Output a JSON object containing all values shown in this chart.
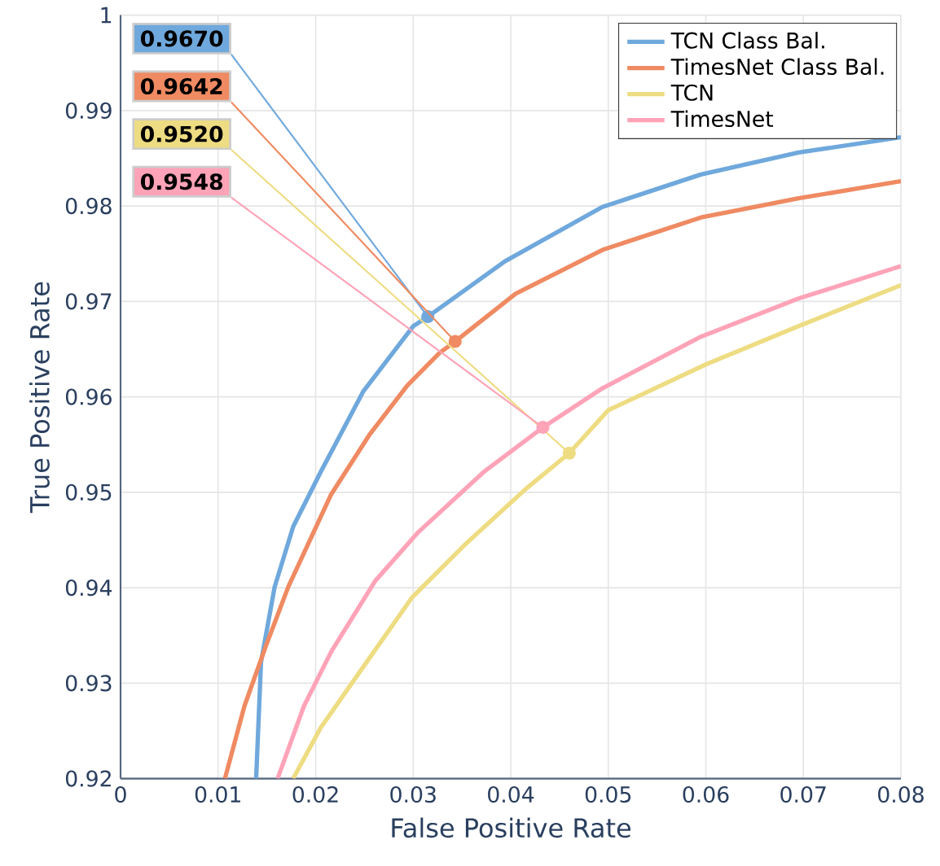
{
  "chart_data": {
    "type": "line",
    "xlabel": "False Positive Rate",
    "ylabel": "True Positive Rate",
    "xlim": [
      0,
      0.08
    ],
    "ylim": [
      0.92,
      1
    ],
    "xticks": [
      0,
      0.01,
      0.02,
      0.03,
      0.04,
      0.05,
      0.06,
      0.07,
      0.08
    ],
    "yticks": [
      0.92,
      0.93,
      0.94,
      0.95,
      0.96,
      0.97,
      0.98,
      0.99,
      1
    ],
    "grid": true,
    "legend": "top right",
    "line_style": "solid",
    "series": [
      {
        "name": "TCN Class Bal.",
        "color": "#6fa8dc",
        "x": [
          0.0139,
          0.0144,
          0.0158,
          0.0177,
          0.0205,
          0.0249,
          0.03,
          0.0315,
          0.0394,
          0.0494,
          0.0595,
          0.0695,
          0.08
        ],
        "values": [
          0.92,
          0.9322,
          0.9401,
          0.9464,
          0.9521,
          0.9606,
          0.9674,
          0.9684,
          0.9742,
          0.9799,
          0.9833,
          0.9856,
          0.9872
        ]
      },
      {
        "name": "TimesNet Class Bal.",
        "color": "#ef8a62",
        "x": [
          0.0107,
          0.0127,
          0.0149,
          0.0172,
          0.0216,
          0.0255,
          0.0294,
          0.0327,
          0.0343,
          0.0405,
          0.0494,
          0.0595,
          0.0695,
          0.08
        ],
        "values": [
          0.92,
          0.9276,
          0.9339,
          0.9401,
          0.9498,
          0.956,
          0.9612,
          0.9646,
          0.9658,
          0.9708,
          0.9754,
          0.9788,
          0.9808,
          0.9826
        ]
      },
      {
        "name": "TCN",
        "color": "#eedc82",
        "x": [
          0.0177,
          0.0205,
          0.0244,
          0.0299,
          0.0355,
          0.0416,
          0.046,
          0.05,
          0.06,
          0.0695,
          0.08
        ],
        "values": [
          0.92,
          0.9253,
          0.931,
          0.939,
          0.9447,
          0.9504,
          0.9541,
          0.9586,
          0.9634,
          0.9674,
          0.9717
        ]
      },
      {
        "name": "TimesNet",
        "color": "#ffa3b8",
        "x": [
          0.0161,
          0.0188,
          0.0216,
          0.0261,
          0.0305,
          0.0372,
          0.0433,
          0.0494,
          0.0595,
          0.0695,
          0.08
        ],
        "values": [
          0.92,
          0.9276,
          0.9333,
          0.9407,
          0.9458,
          0.9521,
          0.9568,
          0.9609,
          0.9663,
          0.9703,
          0.9737
        ]
      }
    ],
    "annotations": [
      {
        "text": "0.9670",
        "x": 0.0315,
        "y": 0.9684
      },
      {
        "text": "0.9642",
        "x": 0.0343,
        "y": 0.9658
      },
      {
        "text": "0.9520",
        "x": 0.046,
        "y": 0.9541
      },
      {
        "text": "0.9548",
        "x": 0.0433,
        "y": 0.9568
      }
    ]
  }
}
